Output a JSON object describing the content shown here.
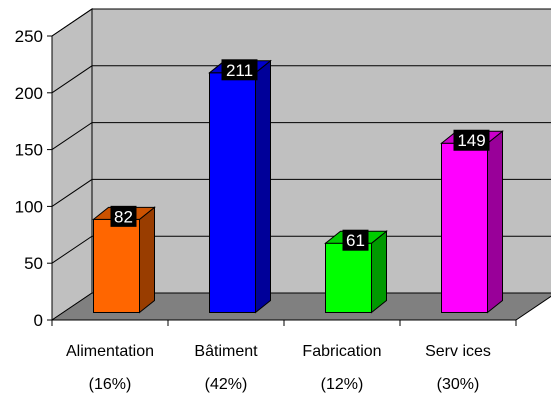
{
  "chart_data": {
    "type": "bar",
    "categories": [
      [
        "Alimentation",
        "(16%)"
      ],
      [
        "Bâtiment",
        "(42%)"
      ],
      [
        "Fabrication",
        "(12%)"
      ],
      [
        "Serv ices",
        "(30%)"
      ]
    ],
    "values": [
      82,
      211,
      61,
      149
    ],
    "value_labels": [
      "82",
      "211",
      "61",
      "149"
    ],
    "bar_colors": [
      "#FF6600",
      "#0000FF",
      "#00FF00",
      "#FF00FF"
    ],
    "ylim": [
      0,
      250
    ],
    "y_ticks": [
      0,
      50,
      100,
      150,
      200,
      250
    ],
    "y_tick_labels": [
      "0",
      "50",
      "100",
      "150",
      "200",
      "250"
    ],
    "grid": true,
    "style": "3d-column",
    "wall_color": "#C0C0C0",
    "floor_color": "#808080",
    "title": "",
    "xlabel": "",
    "ylabel": ""
  }
}
